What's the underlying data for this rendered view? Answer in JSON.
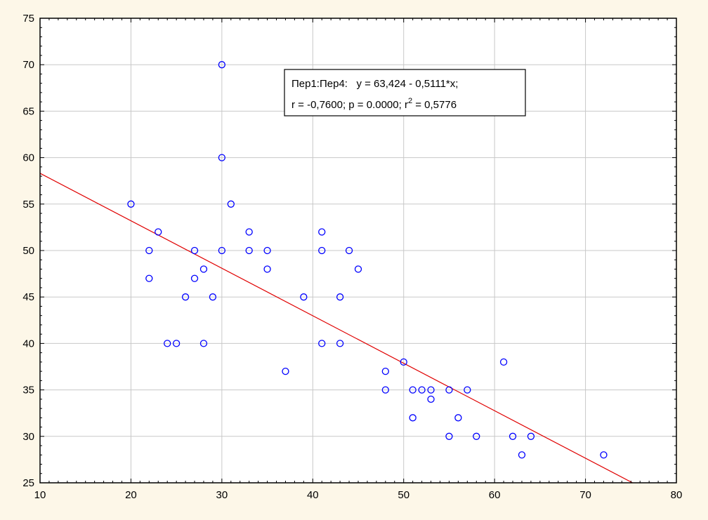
{
  "chart_data": {
    "type": "scatter",
    "title": "",
    "xlabel": "",
    "ylabel": "",
    "xlim": [
      10,
      80
    ],
    "ylim": [
      25,
      75
    ],
    "xticks": [
      10,
      20,
      30,
      40,
      50,
      60,
      70,
      80
    ],
    "yticks": [
      25,
      30,
      35,
      40,
      45,
      50,
      55,
      60,
      65,
      70,
      75
    ],
    "grid": true,
    "colors": {
      "points": "#0000ff",
      "fit_line": "#e00000",
      "plot_background": "#ffffff",
      "page_background": "#fdf7e8"
    },
    "series": [
      {
        "points": [
          [
            20,
            55
          ],
          [
            22,
            50
          ],
          [
            22,
            47
          ],
          [
            23,
            52
          ],
          [
            24,
            40
          ],
          [
            25,
            40
          ],
          [
            26,
            45
          ],
          [
            27,
            50
          ],
          [
            27,
            47
          ],
          [
            28,
            48
          ],
          [
            28,
            40
          ],
          [
            29,
            45
          ],
          [
            30,
            70
          ],
          [
            30,
            60
          ],
          [
            30,
            50
          ],
          [
            31,
            55
          ],
          [
            33,
            52
          ],
          [
            33,
            50
          ],
          [
            35,
            50
          ],
          [
            35,
            48
          ],
          [
            37,
            37
          ],
          [
            39,
            45
          ],
          [
            41,
            52
          ],
          [
            41,
            50
          ],
          [
            41,
            40
          ],
          [
            43,
            45
          ],
          [
            43,
            40
          ],
          [
            44,
            50
          ],
          [
            45,
            48
          ],
          [
            48,
            37
          ],
          [
            48,
            35
          ],
          [
            50,
            38
          ],
          [
            51,
            35
          ],
          [
            51,
            32
          ],
          [
            52,
            35
          ],
          [
            53,
            35
          ],
          [
            53,
            34
          ],
          [
            55,
            35
          ],
          [
            55,
            30
          ],
          [
            56,
            32
          ],
          [
            57,
            35
          ],
          [
            58,
            30
          ],
          [
            61,
            38
          ],
          [
            62,
            30
          ],
          [
            63,
            28
          ],
          [
            64,
            30
          ],
          [
            72,
            28
          ]
        ]
      }
    ],
    "fit": {
      "intercept": 63.424,
      "slope": -0.5111
    },
    "annotation": {
      "line1": "Пер1:Пер4:   y = 63,424 - 0,5111*x;",
      "line2_a": "r = -0,7600; p = 0.0000; r",
      "line2_sup": "2",
      "line2_b": " = 0,5776"
    }
  }
}
